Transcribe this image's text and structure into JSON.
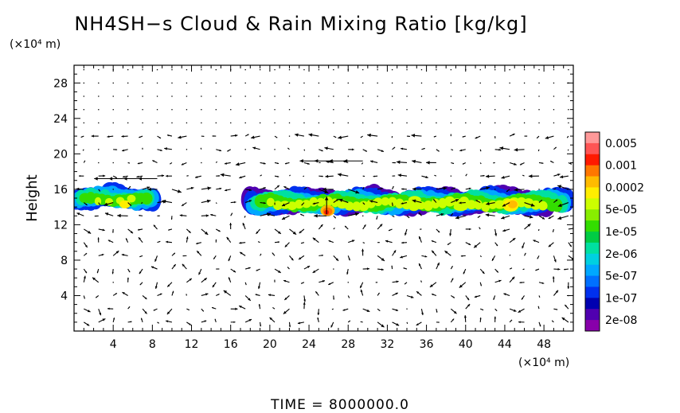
{
  "chart_data": {
    "type": "heatmap",
    "title": "NH4SH−s Cloud & Rain Mixing Ratio [kg/kg]",
    "ylabel": "Height",
    "x_unit": "(×10⁴ m)",
    "y_unit": "(×10⁴ m)",
    "xlim": [
      0,
      51
    ],
    "ylim": [
      0,
      30
    ],
    "x_ticks": [
      4,
      8,
      12,
      16,
      20,
      24,
      28,
      32,
      36,
      40,
      44,
      48
    ],
    "y_ticks": [
      4,
      8,
      12,
      16,
      20,
      24,
      28
    ],
    "footer": "TIME  =  8000000.0",
    "colorbar": {
      "labels": [
        "0.005",
        "0.001",
        "0.0002",
        "5e-05",
        "1e-05",
        "2e-06",
        "5e-07",
        "1e-07",
        "2e-08"
      ],
      "colors": [
        "#ff9999",
        "#ff5555",
        "#ff1a00",
        "#ff7700",
        "#ffbb00",
        "#ffee00",
        "#ccff00",
        "#88ee00",
        "#33dd00",
        "#00cc44",
        "#00e0a0",
        "#00d0e0",
        "#00a8ff",
        "#0070ff",
        "#0030ee",
        "#0000b0",
        "#5000b0",
        "#8800aa"
      ]
    },
    "cloud_regions": [
      {
        "x_start": 0,
        "x_end": 8.7,
        "y_bottom": 13.7,
        "y_top": 16.4,
        "peak": "0.0002"
      },
      {
        "x_start": 17.8,
        "x_end": 50.8,
        "y_bottom": 12.9,
        "y_top": 16.4,
        "peak": "0.001"
      }
    ],
    "wind_bands": [
      {
        "y": 19.2,
        "x_start": 23.5,
        "x_end": 29.5,
        "direction": "westward"
      },
      {
        "y": 17.2,
        "x_start": 2.5,
        "x_end": 8.5,
        "direction": "westward"
      }
    ]
  }
}
